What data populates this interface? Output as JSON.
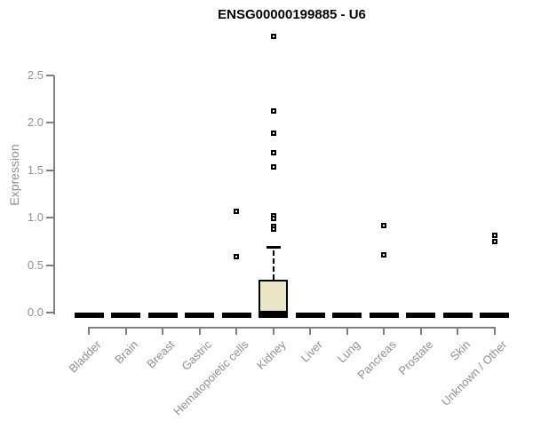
{
  "title": "ENSG00000199885 - U6",
  "colors": {
    "background": "#ffffff",
    "box_fill": "#ece6c9",
    "stroke": "#000000",
    "axis_line": "#808080",
    "tick_text": "#909090",
    "title_text": "#000000"
  },
  "chart_data": {
    "type": "boxplot",
    "title": "ENSG00000199885 - U6",
    "xlabel": "",
    "ylabel": "Expression",
    "ylim": [
      -0.15,
      2.95
    ],
    "yticks": [
      0.0,
      0.5,
      1.0,
      1.5,
      2.0,
      2.5
    ],
    "grid": false,
    "legend": false,
    "categories": [
      "Bladder",
      "Brain",
      "Breast",
      "Gastric",
      "Hematopoietic cells",
      "Kidney",
      "Liver",
      "Lung",
      "Pancreas",
      "Prostate",
      "Skin",
      "Unknown / Other"
    ],
    "series": [
      {
        "category": "Bladder",
        "q1": 0,
        "median": 0,
        "q3": 0,
        "whisker_low": 0,
        "whisker_high": 0,
        "outliers": []
      },
      {
        "category": "Brain",
        "q1": 0,
        "median": 0,
        "q3": 0,
        "whisker_low": 0,
        "whisker_high": 0,
        "outliers": []
      },
      {
        "category": "Breast",
        "q1": 0,
        "median": 0,
        "q3": 0,
        "whisker_low": 0,
        "whisker_high": 0,
        "outliers": []
      },
      {
        "category": "Gastric",
        "q1": 0,
        "median": 0,
        "q3": 0,
        "whisker_low": 0,
        "whisker_high": 0,
        "outliers": []
      },
      {
        "category": "Hematopoietic cells",
        "q1": 0,
        "median": 0,
        "q3": 0,
        "whisker_low": 0,
        "whisker_high": 0,
        "outliers": [
          1.07,
          0.59
        ]
      },
      {
        "category": "Kidney",
        "q1": 0,
        "median": 0,
        "q3": 0.35,
        "whisker_low": 0,
        "whisker_high": 0.68,
        "outliers": [
          2.91,
          2.13,
          1.89,
          1.69,
          1.54,
          1.02,
          0.99,
          0.91,
          0.88
        ]
      },
      {
        "category": "Liver",
        "q1": 0,
        "median": 0,
        "q3": 0,
        "whisker_low": 0,
        "whisker_high": 0,
        "outliers": []
      },
      {
        "category": "Lung",
        "q1": 0,
        "median": 0,
        "q3": 0,
        "whisker_low": 0,
        "whisker_high": 0,
        "outliers": []
      },
      {
        "category": "Pancreas",
        "q1": 0,
        "median": 0,
        "q3": 0,
        "whisker_low": 0,
        "whisker_high": 0,
        "outliers": [
          0.92,
          0.61
        ]
      },
      {
        "category": "Prostate",
        "q1": 0,
        "median": 0,
        "q3": 0,
        "whisker_low": 0,
        "whisker_high": 0,
        "outliers": []
      },
      {
        "category": "Skin",
        "q1": 0,
        "median": 0,
        "q3": 0,
        "whisker_low": 0,
        "whisker_high": 0,
        "outliers": []
      },
      {
        "category": "Unknown / Other",
        "q1": 0,
        "median": 0,
        "q3": 0,
        "whisker_low": 0,
        "whisker_high": 0,
        "outliers": [
          0.81,
          0.75
        ]
      }
    ]
  }
}
